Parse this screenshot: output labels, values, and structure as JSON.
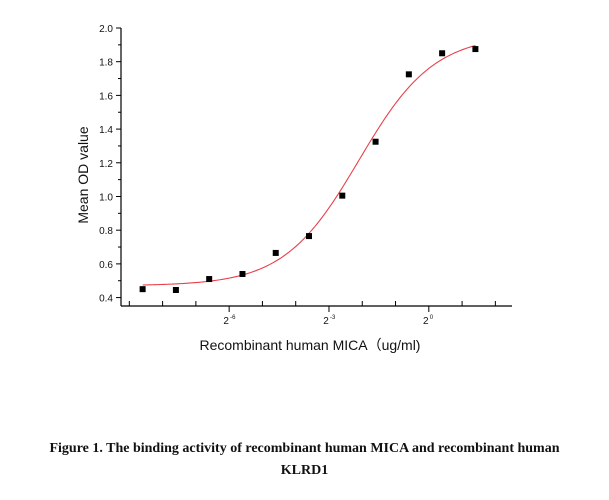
{
  "chart_data": {
    "type": "scatter",
    "title": "",
    "xlabel": "Recombinant human MICA（ug/ml)",
    "ylabel": "Mean OD value",
    "x_scale": "log2",
    "xlim_log2": [
      -9.25,
      2.5
    ],
    "ylim": [
      0.35,
      2.0
    ],
    "x_ticks": [
      {
        "base": "2",
        "exp": "-6",
        "log2": -6
      },
      {
        "base": "2",
        "exp": "-3",
        "log2": -3
      },
      {
        "base": "2",
        "exp": "0",
        "log2": 0
      }
    ],
    "x_minor_ticks_log2": [
      -9,
      -8,
      -7,
      -5,
      -4,
      -2,
      -1,
      1,
      2
    ],
    "y_ticks": [
      "0.4",
      "0.6",
      "0.8",
      "1.0",
      "1.2",
      "1.4",
      "1.6",
      "1.8",
      "2.0"
    ],
    "grid": false,
    "legend": "none",
    "series": [
      {
        "marker": "square",
        "color": "#000000",
        "points": [
          {
            "x_log2": -8.6,
            "y": 0.45
          },
          {
            "x_log2": -7.6,
            "y": 0.445
          },
          {
            "x_log2": -6.6,
            "y": 0.51
          },
          {
            "x_log2": -5.6,
            "y": 0.54
          },
          {
            "x_log2": -4.6,
            "y": 0.665
          },
          {
            "x_log2": -3.6,
            "y": 0.765
          },
          {
            "x_log2": -2.6,
            "y": 1.005
          },
          {
            "x_log2": -1.6,
            "y": 1.325
          },
          {
            "x_log2": -0.6,
            "y": 1.725
          },
          {
            "x_log2": 0.4,
            "y": 1.85
          },
          {
            "x_log2": 1.4,
            "y": 1.875
          }
        ]
      }
    ],
    "fit": {
      "type": "4PL",
      "color": "#e8404a",
      "bottom": 0.47,
      "top": 1.96,
      "ec50_log2": -2.1,
      "slope_log2": 1.28,
      "x_range_log2": [
        -8.6,
        1.4
      ]
    }
  },
  "caption": {
    "line1": "Figure 1. The binding activity of recombinant human MICA and recombinant human",
    "line2": "KLRD1"
  }
}
